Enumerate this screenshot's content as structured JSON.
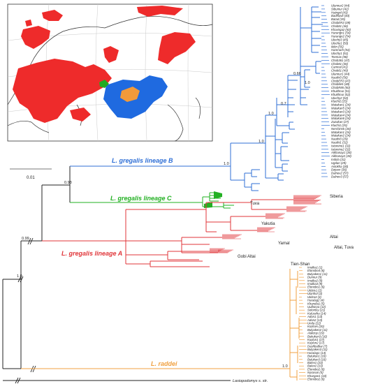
{
  "colors": {
    "lineage_b": "#2f6fd6",
    "lineage_c": "#22b022",
    "lineage_a": "#e0363a",
    "raddei": "#f0a040",
    "outgroup": "#222222",
    "map_red": "#ee2b2b",
    "map_blue": "#1f6ae0",
    "map_orange": "#f29a3a",
    "map_green": "#22aa22"
  },
  "scale_bar": {
    "label": "0.01"
  },
  "lineages": {
    "b": "L. gregalis lineage B",
    "c": "L. gregalis lineage C",
    "a": "L. gregalis lineage A",
    "raddei": "L. raddei",
    "outgroup": "Lasiopodomys s. str."
  },
  "supports": {
    "root": "1.0",
    "gregalis": "0.99",
    "b_plus_c": "0.93",
    "b_crown": "1.0",
    "b_inner": "1.0",
    "b_upper": "1.0",
    "b_070": "0.7",
    "b_066": "0.66",
    "b_top": "1.0",
    "raddei_crown": "1.0"
  },
  "regions": {
    "tuva_c": "Tuva",
    "siberia": "Siberia",
    "yakutia": "Yakutia",
    "altai": "Altai",
    "yamal": "Yamal",
    "altai_tuva": "Altai, Tuva",
    "gobi_altai": "Gobi Altai",
    "tien_shan": "Tien-Shan"
  },
  "lineage_b_tips": [
    "Ulannur2 (44)",
    "Sibumur (42)",
    "Hatngol (43)",
    "Badhlavli (40)",
    "Batad (35)",
    "ChobER3 (49)",
    "Chob81 (46)",
    "Khavirgaz (50)",
    "Harangn1 (54)",
    "Harangn2 (54)",
    "Ulochy3 (45)",
    "Ulochy1 (50)",
    "Ikkin (55)",
    "Harenur5 (54)",
    "Ulochy1 (51)",
    "Tsemas (58)",
    "Chob361 (47)",
    "Chob81 (46)",
    "Camnal (41)",
    "Chob81 (49)",
    "Ulannur1 (44)",
    "Nauthi3 (56)",
    "ChobER3 (47)",
    "Chob8e5 (48)",
    "ChobR85 (50)",
    "Khukhnur (51)",
    "Khukhnur (52)",
    "Ulochy2 (52)",
    "Kluchi2 (25)",
    "Matakan1 (24)",
    "Matakan5 (24)",
    "Matakan3 (24)",
    "Matakan4 (24)",
    "Matakan6 (24)",
    "Zuzakan (27)",
    "Kluchi1 (25)",
    "Nerchinsk (26)",
    "Matakan1 (24)",
    "Matakan2 (24)",
    "Nauthi3 (29)",
    "Nauthi1 (32)",
    "Istomino1 (32)",
    "Istomino2 (32)",
    "Aikhanay1 (28)",
    "Aikhanay2 (28)",
    "Indola (31)",
    "Ugdan (29)",
    "Astokha (30)",
    "Dzjeen (36)",
    "Dalnev2 (57)",
    "Dalnev3 (57)"
  ],
  "raddei_tips": [
    "Imalka1 (1)",
    "Elonobo4 (6)",
    "Bulyaken1 (11)",
    "Dunnur (9)",
    "Imalka2 (9)",
    "Imalka3 (9)",
    "Elonobo1 (6)",
    "Uldzis1 (2)",
    "Ulanhol (3)",
    "Uldza3 (3)",
    "Haralag2 (4)",
    "Khandai1 (5)",
    "Uulborya (12)",
    "Solontsy (21)",
    "Kuluszha (14)",
    "Adon1 (13)",
    "Adon2 (13)",
    "Unda (22)",
    "Kozlovs (20)",
    "Bulyaken2 (11)",
    "Alakzuy (19)",
    "Bukukun3 (16)",
    "Kuylun1 (17)",
    "Kuylun2 (17)",
    "Dashbalbar (7)",
    "Bulyaken3 (11)",
    "Haralag1 (14)",
    "Bulukun1 (18)",
    "Bulukun3 (18)",
    "Balev1 (23)",
    "Balev2 (23)",
    "Elonobo2 (6)",
    "Narasun (5)",
    "Khargan1 (10)",
    "Elonobo2 (6)"
  ]
}
